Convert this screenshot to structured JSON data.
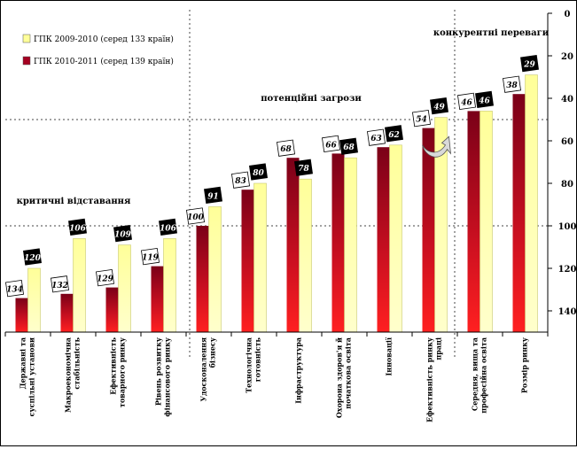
{
  "chart_data": {
    "type": "bar",
    "y_axis": {
      "reversed": true,
      "ylim": [
        0,
        150
      ],
      "ticks": [
        0,
        20,
        40,
        60,
        80,
        100,
        120,
        140
      ],
      "position": "right"
    },
    "legend": [
      {
        "label": "ГПК 2009-2010 (серед 133 країн)",
        "color": "#ffff99"
      },
      {
        "label": "ГПК 2010-2011 (серед 139 країн)",
        "color": "#a50021"
      }
    ],
    "zones": [
      {
        "label": "критичні відставання"
      },
      {
        "label": "потенційні загрози"
      },
      {
        "label": "конкурентні переваги"
      }
    ],
    "categories": [
      "Державні та суспільні установи",
      "Макроекономічна стабільність",
      "Ефективність товарного ринку",
      "Рівень розвитку фінансового ринку",
      "Удосконалення бізнесу",
      "Технологічна готовність",
      "Інфраструктура",
      "Охорона здоров'я й початкова освіта",
      "Інновації",
      "Ефективність ринку праці",
      "Середня, вища та професійна освіта",
      "Розмір ринку"
    ],
    "series": [
      {
        "name": "ГПК 2010-2011 (серед 139 країн)",
        "values": [
          134,
          132,
          129,
          119,
          100,
          83,
          68,
          66,
          63,
          54,
          46,
          38
        ]
      },
      {
        "name": "ГПК 2009-2010 (серед 133 країн)",
        "values": [
          120,
          106,
          109,
          106,
          91,
          80,
          78,
          68,
          62,
          49,
          46,
          29
        ]
      }
    ]
  }
}
